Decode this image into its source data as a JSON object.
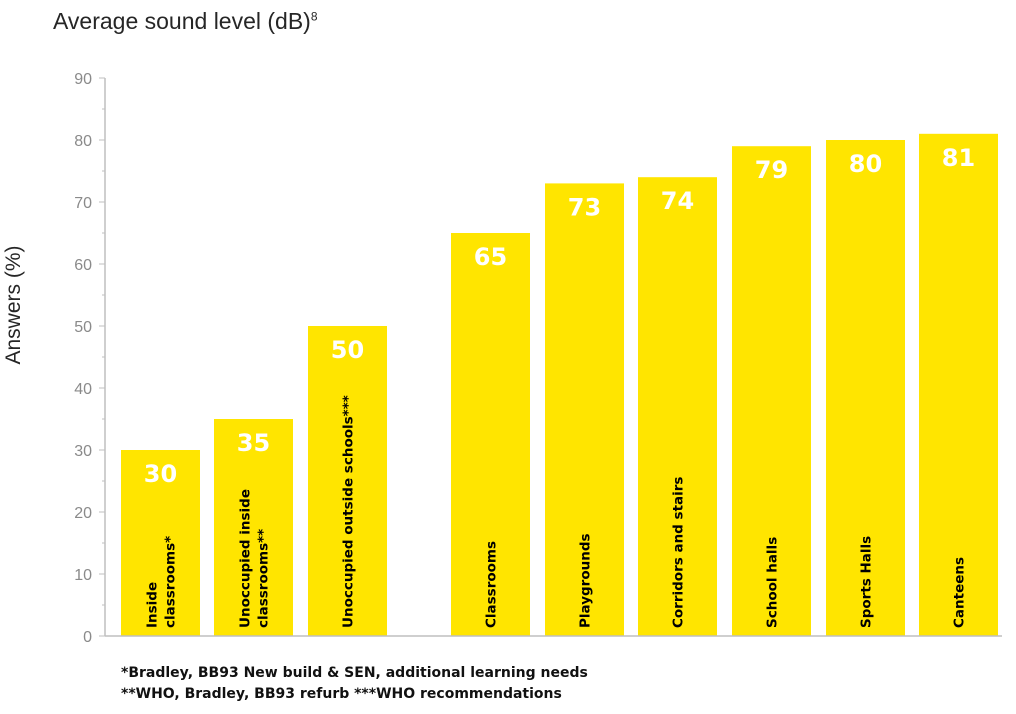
{
  "chart_data": {
    "type": "bar",
    "title": "Average sound level (dB)",
    "title_superscript": "8",
    "xlabel": "",
    "ylabel": "Answers (%)",
    "ylim": [
      0,
      90
    ],
    "yticks": [
      0,
      10,
      20,
      30,
      40,
      50,
      60,
      70,
      80,
      90
    ],
    "grid": false,
    "bar_color": "#FFE500",
    "categories": [
      [
        "Inside",
        "classrooms*"
      ],
      [
        "Unoccupied inside",
        "classrooms**"
      ],
      [
        "Unoccupied outside schools***"
      ],
      [
        "Classrooms"
      ],
      [
        "Playgrounds"
      ],
      [
        "Corridors and stairs"
      ],
      [
        "School halls"
      ],
      [
        "Sports Halls"
      ],
      [
        "Canteens"
      ]
    ],
    "values": [
      30,
      35,
      50,
      65,
      73,
      74,
      79,
      80,
      81
    ]
  },
  "footnotes": [
    "*Bradley, BB93 New build & SEN, additional learning needs",
    "**WHO, Bradley, BB93 refurb ***WHO recommendations"
  ]
}
